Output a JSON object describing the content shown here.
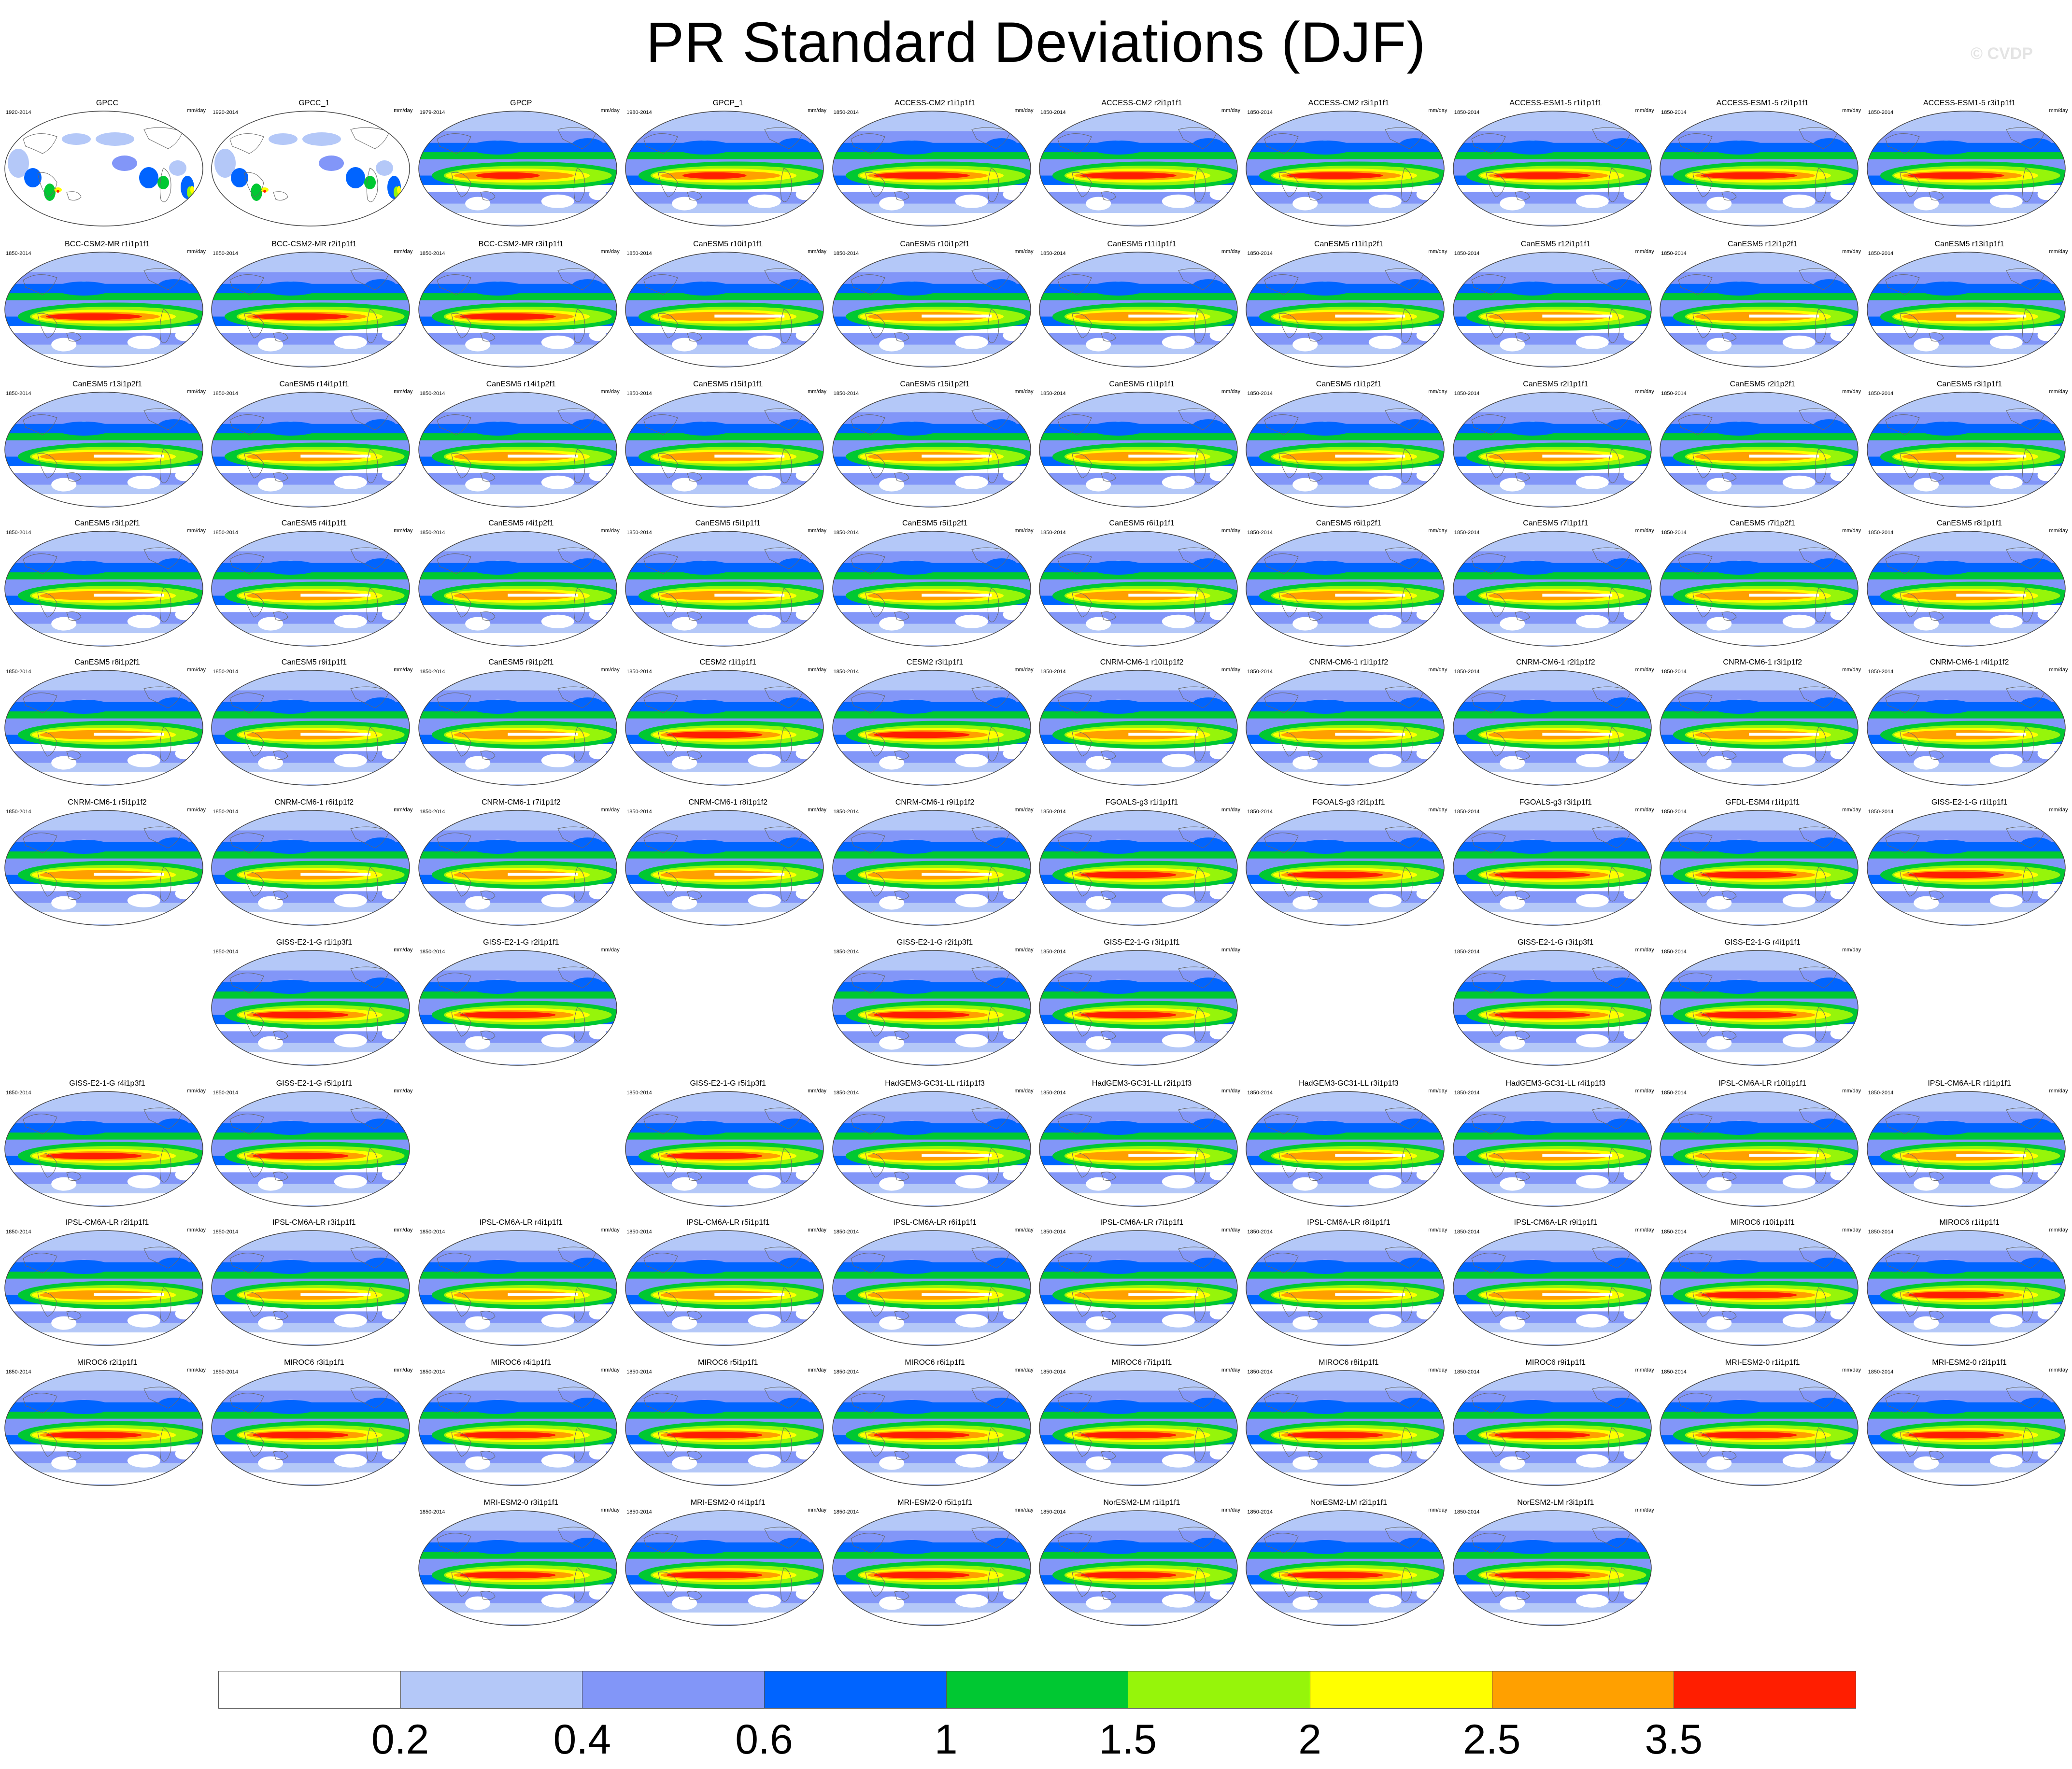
{
  "title": "PR Standard Deviations (DJF)",
  "watermark": "© CVDP",
  "units": "mm/day",
  "colorbar": {
    "colors": [
      "#ffffff",
      "#b4c8f8",
      "#8296f8",
      "#0064ff",
      "#00c832",
      "#96f50a",
      "#ffff00",
      "#ffa000",
      "#ff1e00"
    ],
    "labels": [
      "0.2",
      "0.4",
      "0.6",
      "1",
      "1.5",
      "2",
      "2.5",
      "3.5"
    ]
  },
  "panels": [
    {
      "label": "GPCC",
      "years": "1920-2014",
      "row": 0,
      "col": 0,
      "style": "obs"
    },
    {
      "label": "GPCC_1",
      "years": "1920-2014",
      "row": 0,
      "col": 1,
      "style": "obs"
    },
    {
      "label": "GPCP",
      "years": "1979-2014",
      "row": 0,
      "col": 2,
      "style": "gpcp"
    },
    {
      "label": "GPCP_1",
      "years": "1980-2014",
      "row": 0,
      "col": 3,
      "style": "gpcp"
    },
    {
      "label": "ACCESS-CM2 r1i1p1f1",
      "years": "1850-2014",
      "row": 0,
      "col": 4,
      "style": "strong"
    },
    {
      "label": "ACCESS-CM2 r2i1p1f1",
      "years": "1850-2014",
      "row": 0,
      "col": 5,
      "style": "strong"
    },
    {
      "label": "ACCESS-CM2 r3i1p1f1",
      "years": "1850-2014",
      "row": 0,
      "col": 6,
      "style": "strong"
    },
    {
      "label": "ACCESS-ESM1-5 r1i1p1f1",
      "years": "1850-2014",
      "row": 0,
      "col": 7,
      "style": "strong"
    },
    {
      "label": "ACCESS-ESM1-5 r2i1p1f1",
      "years": "1850-2014",
      "row": 0,
      "col": 8,
      "style": "strong"
    },
    {
      "label": "ACCESS-ESM1-5 r3i1p1f1",
      "years": "1850-2014",
      "row": 0,
      "col": 9,
      "style": "strong"
    },
    {
      "label": "BCC-CSM2-MR r1i1p1f1",
      "years": "1850-2014",
      "row": 1,
      "col": 0,
      "style": "strong"
    },
    {
      "label": "BCC-CSM2-MR r2i1p1f1",
      "years": "1850-2014",
      "row": 1,
      "col": 1,
      "style": "strong"
    },
    {
      "label": "BCC-CSM2-MR r3i1p1f1",
      "years": "1850-2014",
      "row": 1,
      "col": 2,
      "style": "strong"
    },
    {
      "label": "CanESM5 r10i1p1f1",
      "years": "1850-2014",
      "row": 1,
      "col": 3,
      "style": "medium"
    },
    {
      "label": "CanESM5 r10i1p2f1",
      "years": "1850-2014",
      "row": 1,
      "col": 4,
      "style": "medium"
    },
    {
      "label": "CanESM5 r11i1p1f1",
      "years": "1850-2014",
      "row": 1,
      "col": 5,
      "style": "medium"
    },
    {
      "label": "CanESM5 r11i1p2f1",
      "years": "1850-2014",
      "row": 1,
      "col": 6,
      "style": "medium"
    },
    {
      "label": "CanESM5 r12i1p1f1",
      "years": "1850-2014",
      "row": 1,
      "col": 7,
      "style": "medium"
    },
    {
      "label": "CanESM5 r12i1p2f1",
      "years": "1850-2014",
      "row": 1,
      "col": 8,
      "style": "medium"
    },
    {
      "label": "CanESM5 r13i1p1f1",
      "years": "1850-2014",
      "row": 1,
      "col": 9,
      "style": "medium"
    },
    {
      "label": "CanESM5 r13i1p2f1",
      "years": "1850-2014",
      "row": 2,
      "col": 0,
      "style": "medium"
    },
    {
      "label": "CanESM5 r14i1p1f1",
      "years": "1850-2014",
      "row": 2,
      "col": 1,
      "style": "medium"
    },
    {
      "label": "CanESM5 r14i1p2f1",
      "years": "1850-2014",
      "row": 2,
      "col": 2,
      "style": "medium"
    },
    {
      "label": "CanESM5 r15i1p1f1",
      "years": "1850-2014",
      "row": 2,
      "col": 3,
      "style": "medium"
    },
    {
      "label": "CanESM5 r15i1p2f1",
      "years": "1850-2014",
      "row": 2,
      "col": 4,
      "style": "medium"
    },
    {
      "label": "CanESM5 r1i1p1f1",
      "years": "1850-2014",
      "row": 2,
      "col": 5,
      "style": "medium"
    },
    {
      "label": "CanESM5 r1i1p2f1",
      "years": "1850-2014",
      "row": 2,
      "col": 6,
      "style": "medium"
    },
    {
      "label": "CanESM5 r2i1p1f1",
      "years": "1850-2014",
      "row": 2,
      "col": 7,
      "style": "medium"
    },
    {
      "label": "CanESM5 r2i1p2f1",
      "years": "1850-2014",
      "row": 2,
      "col": 8,
      "style": "medium"
    },
    {
      "label": "CanESM5 r3i1p1f1",
      "years": "1850-2014",
      "row": 2,
      "col": 9,
      "style": "medium"
    },
    {
      "label": "CanESM5 r3i1p2f1",
      "years": "1850-2014",
      "row": 3,
      "col": 0,
      "style": "medium"
    },
    {
      "label": "CanESM5 r4i1p1f1",
      "years": "1850-2014",
      "row": 3,
      "col": 1,
      "style": "medium"
    },
    {
      "label": "CanESM5 r4i1p2f1",
      "years": "1850-2014",
      "row": 3,
      "col": 2,
      "style": "medium"
    },
    {
      "label": "CanESM5 r5i1p1f1",
      "years": "1850-2014",
      "row": 3,
      "col": 3,
      "style": "medium"
    },
    {
      "label": "CanESM5 r5i1p2f1",
      "years": "1850-2014",
      "row": 3,
      "col": 4,
      "style": "medium"
    },
    {
      "label": "CanESM5 r6i1p1f1",
      "years": "1850-2014",
      "row": 3,
      "col": 5,
      "style": "medium"
    },
    {
      "label": "CanESM5 r6i1p2f1",
      "years": "1850-2014",
      "row": 3,
      "col": 6,
      "style": "medium"
    },
    {
      "label": "CanESM5 r7i1p1f1",
      "years": "1850-2014",
      "row": 3,
      "col": 7,
      "style": "medium"
    },
    {
      "label": "CanESM5 r7i1p2f1",
      "years": "1850-2014",
      "row": 3,
      "col": 8,
      "style": "medium"
    },
    {
      "label": "CanESM5 r8i1p1f1",
      "years": "1850-2014",
      "row": 3,
      "col": 9,
      "style": "medium"
    },
    {
      "label": "CanESM5 r8i1p2f1",
      "years": "1850-2014",
      "row": 4,
      "col": 0,
      "style": "medium"
    },
    {
      "label": "CanESM5 r9i1p1f1",
      "years": "1850-2014",
      "row": 4,
      "col": 1,
      "style": "medium"
    },
    {
      "label": "CanESM5 r9i1p2f1",
      "years": "1850-2014",
      "row": 4,
      "col": 2,
      "style": "medium"
    },
    {
      "label": "CESM2 r1i1p1f1",
      "years": "1850-2014",
      "row": 4,
      "col": 3,
      "style": "strong"
    },
    {
      "label": "CESM2 r3i1p1f1",
      "years": "1850-2014",
      "row": 4,
      "col": 4,
      "style": "strong"
    },
    {
      "label": "CNRM-CM6-1 r10i1p1f2",
      "years": "1850-2014",
      "row": 4,
      "col": 5,
      "style": "medium"
    },
    {
      "label": "CNRM-CM6-1 r1i1p1f2",
      "years": "1850-2014",
      "row": 4,
      "col": 6,
      "style": "medium"
    },
    {
      "label": "CNRM-CM6-1 r2i1p1f2",
      "years": "1850-2014",
      "row": 4,
      "col": 7,
      "style": "medium"
    },
    {
      "label": "CNRM-CM6-1 r3i1p1f2",
      "years": "1850-2014",
      "row": 4,
      "col": 8,
      "style": "medium"
    },
    {
      "label": "CNRM-CM6-1 r4i1p1f2",
      "years": "1850-2014",
      "row": 4,
      "col": 9,
      "style": "medium"
    },
    {
      "label": "CNRM-CM6-1 r5i1p1f2",
      "years": "1850-2014",
      "row": 5,
      "col": 0,
      "style": "medium"
    },
    {
      "label": "CNRM-CM6-1 r6i1p1f2",
      "years": "1850-2014",
      "row": 5,
      "col": 1,
      "style": "medium"
    },
    {
      "label": "CNRM-CM6-1 r7i1p1f2",
      "years": "1850-2014",
      "row": 5,
      "col": 2,
      "style": "medium"
    },
    {
      "label": "CNRM-CM6-1 r8i1p1f2",
      "years": "1850-2014",
      "row": 5,
      "col": 3,
      "style": "medium"
    },
    {
      "label": "CNRM-CM6-1 r9i1p1f2",
      "years": "1850-2014",
      "row": 5,
      "col": 4,
      "style": "medium"
    },
    {
      "label": "FGOALS-g3 r1i1p1f1",
      "years": "1850-2014",
      "row": 5,
      "col": 5,
      "style": "strong"
    },
    {
      "label": "FGOALS-g3 r2i1p1f1",
      "years": "1850-2014",
      "row": 5,
      "col": 6,
      "style": "strong"
    },
    {
      "label": "FGOALS-g3 r3i1p1f1",
      "years": "1850-2014",
      "row": 5,
      "col": 7,
      "style": "strong"
    },
    {
      "label": "GFDL-ESM4 r1i1p1f1",
      "years": "1850-2014",
      "row": 5,
      "col": 8,
      "style": "strong"
    },
    {
      "label": "GISS-E2-1-G r1i1p1f1",
      "years": "1850-2014",
      "row": 5,
      "col": 9,
      "style": "strong"
    },
    {
      "label": "GISS-E2-1-G r1i1p3f1",
      "years": "1850-2014",
      "row": 6,
      "col": 1,
      "style": "strong"
    },
    {
      "label": "GISS-E2-1-G r2i1p1f1",
      "years": "1850-2014",
      "row": 6,
      "col": 2,
      "style": "strong"
    },
    {
      "label": "GISS-E2-1-G r2i1p3f1",
      "years": "1850-2014",
      "row": 6,
      "col": 4,
      "style": "strong"
    },
    {
      "label": "GISS-E2-1-G r3i1p1f1",
      "years": "1850-2014",
      "row": 6,
      "col": 5,
      "style": "strong"
    },
    {
      "label": "GISS-E2-1-G r3i1p3f1",
      "years": "1850-2014",
      "row": 6,
      "col": 7,
      "style": "strong"
    },
    {
      "label": "GISS-E2-1-G r4i1p1f1",
      "years": "1850-2014",
      "row": 6,
      "col": 8,
      "style": "strong"
    },
    {
      "label": "GISS-E2-1-G r4i1p3f1",
      "years": "1850-2014",
      "row": 7,
      "col": 0,
      "style": "strong"
    },
    {
      "label": "GISS-E2-1-G r5i1p1f1",
      "years": "1850-2014",
      "row": 7,
      "col": 1,
      "style": "strong"
    },
    {
      "label": "GISS-E2-1-G r5i1p3f1",
      "years": "1850-2014",
      "row": 7,
      "col": 3,
      "style": "strong"
    },
    {
      "label": "HadGEM3-GC31-LL r1i1p1f3",
      "years": "1850-2014",
      "row": 7,
      "col": 4,
      "style": "medium"
    },
    {
      "label": "HadGEM3-GC31-LL r2i1p1f3",
      "years": "1850-2014",
      "row": 7,
      "col": 5,
      "style": "medium"
    },
    {
      "label": "HadGEM3-GC31-LL r3i1p1f3",
      "years": "1850-2014",
      "row": 7,
      "col": 6,
      "style": "medium"
    },
    {
      "label": "HadGEM3-GC31-LL r4i1p1f3",
      "years": "1850-2014",
      "row": 7,
      "col": 7,
      "style": "medium"
    },
    {
      "label": "IPSL-CM6A-LR r10i1p1f1",
      "years": "1850-2014",
      "row": 7,
      "col": 8,
      "style": "medium"
    },
    {
      "label": "IPSL-CM6A-LR r1i1p1f1",
      "years": "1850-2014",
      "row": 7,
      "col": 9,
      "style": "medium"
    },
    {
      "label": "IPSL-CM6A-LR r2i1p1f1",
      "years": "1850-2014",
      "row": 8,
      "col": 0,
      "style": "medium"
    },
    {
      "label": "IPSL-CM6A-LR r3i1p1f1",
      "years": "1850-2014",
      "row": 8,
      "col": 1,
      "style": "medium"
    },
    {
      "label": "IPSL-CM6A-LR r4i1p1f1",
      "years": "1850-2014",
      "row": 8,
      "col": 2,
      "style": "medium"
    },
    {
      "label": "IPSL-CM6A-LR r5i1p1f1",
      "years": "1850-2014",
      "row": 8,
      "col": 3,
      "style": "medium"
    },
    {
      "label": "IPSL-CM6A-LR r6i1p1f1",
      "years": "1850-2014",
      "row": 8,
      "col": 4,
      "style": "medium"
    },
    {
      "label": "IPSL-CM6A-LR r7i1p1f1",
      "years": "1850-2014",
      "row": 8,
      "col": 5,
      "style": "medium"
    },
    {
      "label": "IPSL-CM6A-LR r8i1p1f1",
      "years": "1850-2014",
      "row": 8,
      "col": 6,
      "style": "medium"
    },
    {
      "label": "IPSL-CM6A-LR r9i1p1f1",
      "years": "1850-2014",
      "row": 8,
      "col": 7,
      "style": "medium"
    },
    {
      "label": "MIROC6 r10i1p1f1",
      "years": "1850-2014",
      "row": 8,
      "col": 8,
      "style": "strong"
    },
    {
      "label": "MIROC6 r1i1p1f1",
      "years": "1850-2014",
      "row": 8,
      "col": 9,
      "style": "strong"
    },
    {
      "label": "MIROC6 r2i1p1f1",
      "years": "1850-2014",
      "row": 9,
      "col": 0,
      "style": "strong"
    },
    {
      "label": "MIROC6 r3i1p1f1",
      "years": "1850-2014",
      "row": 9,
      "col": 1,
      "style": "strong"
    },
    {
      "label": "MIROC6 r4i1p1f1",
      "years": "1850-2014",
      "row": 9,
      "col": 2,
      "style": "strong"
    },
    {
      "label": "MIROC6 r5i1p1f1",
      "years": "1850-2014",
      "row": 9,
      "col": 3,
      "style": "strong"
    },
    {
      "label": "MIROC6 r6i1p1f1",
      "years": "1850-2014",
      "row": 9,
      "col": 4,
      "style": "strong"
    },
    {
      "label": "MIROC6 r7i1p1f1",
      "years": "1850-2014",
      "row": 9,
      "col": 5,
      "style": "strong"
    },
    {
      "label": "MIROC6 r8i1p1f1",
      "years": "1850-2014",
      "row": 9,
      "col": 6,
      "style": "strong"
    },
    {
      "label": "MIROC6 r9i1p1f1",
      "years": "1850-2014",
      "row": 9,
      "col": 7,
      "style": "strong"
    },
    {
      "label": "MRI-ESM2-0 r1i1p1f1",
      "years": "1850-2014",
      "row": 9,
      "col": 8,
      "style": "strong"
    },
    {
      "label": "MRI-ESM2-0 r2i1p1f1",
      "years": "1850-2014",
      "row": 9,
      "col": 9,
      "style": "strong"
    },
    {
      "label": "MRI-ESM2-0 r3i1p1f1",
      "years": "1850-2014",
      "row": 10,
      "col": 2,
      "style": "strong"
    },
    {
      "label": "MRI-ESM2-0 r4i1p1f1",
      "years": "1850-2014",
      "row": 10,
      "col": 3,
      "style": "strong"
    },
    {
      "label": "MRI-ESM2-0 r5i1p1f1",
      "years": "1850-2014",
      "row": 10,
      "col": 4,
      "style": "strong"
    },
    {
      "label": "NorESM2-LM r1i1p1f1",
      "years": "1850-2014",
      "row": 10,
      "col": 5,
      "style": "strong"
    },
    {
      "label": "NorESM2-LM r2i1p1f1",
      "years": "1850-2014",
      "row": 10,
      "col": 6,
      "style": "strong"
    },
    {
      "label": "NorESM2-LM r3i1p1f1",
      "years": "1850-2014",
      "row": 10,
      "col": 7,
      "style": "strong"
    }
  ]
}
